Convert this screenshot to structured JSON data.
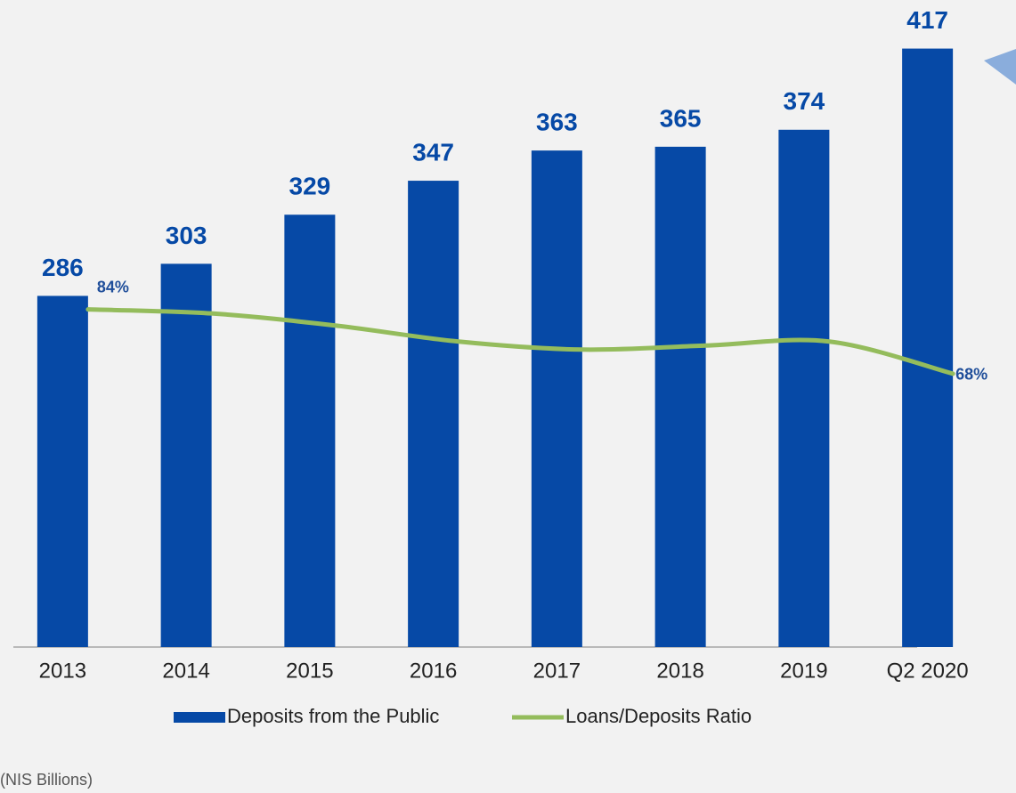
{
  "chart_data": {
    "type": "bar",
    "categories": [
      "2013",
      "2014",
      "2015",
      "2016",
      "2017",
      "2018",
      "2019",
      "Q2 2020"
    ],
    "series": [
      {
        "name": "Deposits from the Public",
        "type": "bar",
        "color": "#0649a6",
        "values": [
          286,
          303,
          329,
          347,
          363,
          365,
          374,
          417
        ]
      },
      {
        "name": "Loans/Deposits Ratio",
        "type": "line",
        "axis": "y2",
        "color": "#94bc5c",
        "values": [
          84,
          83,
          80,
          76,
          74,
          75,
          76,
          68
        ],
        "value_labels": [
          "84%",
          null,
          null,
          null,
          null,
          null,
          null,
          "68%"
        ]
      }
    ],
    "ylim": [
      100,
      430
    ],
    "y2lim": [
      0,
      155
    ],
    "legend": "bottom",
    "note": "(NIS Billions)"
  }
}
